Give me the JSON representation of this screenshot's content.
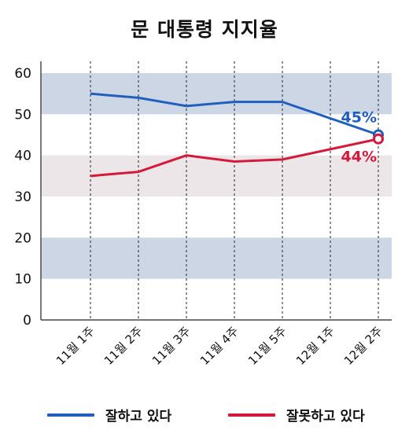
{
  "chart_data": {
    "type": "line",
    "title": "문 대통령 지지율",
    "categories": [
      "11월 1주",
      "11월 2주",
      "11월 3주",
      "11월 4주",
      "11월 5주",
      "12월 1주",
      "12월 2주"
    ],
    "ylim": [
      0,
      60
    ],
    "yticks": [
      0,
      10,
      20,
      30,
      40,
      50,
      60
    ],
    "grid": "vertical dashed",
    "bands": [
      {
        "from": 10,
        "to": 20,
        "color": "#cdd6e4"
      },
      {
        "from": 30,
        "to": 40,
        "color": "#ede6e9"
      },
      {
        "from": 50,
        "to": 60,
        "color": "#cdd6e4"
      }
    ],
    "series": [
      {
        "name": "잘하고 있다",
        "color": "#1f5fbf",
        "values": [
          55,
          54,
          52,
          53,
          53,
          null,
          45
        ],
        "end_label": "45%"
      },
      {
        "name": "잘못하고 있다",
        "color": "#d31a3c",
        "values": [
          35,
          36,
          40,
          38.5,
          39,
          null,
          44
        ],
        "end_label": "44%"
      }
    ],
    "legend": "bottom"
  }
}
